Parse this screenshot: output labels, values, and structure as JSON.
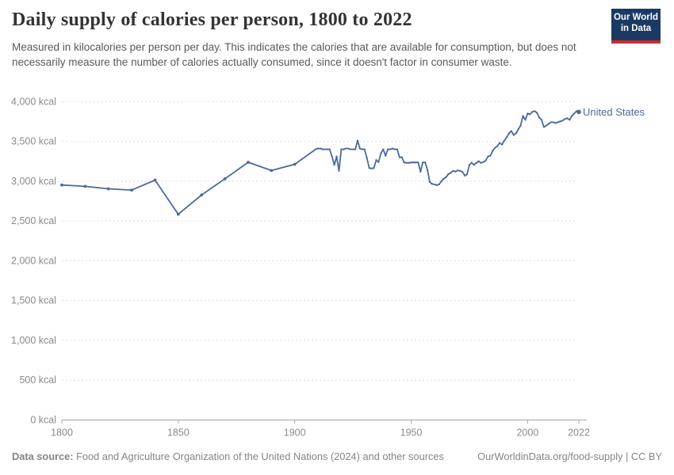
{
  "header": {
    "title": "Daily supply of calories per person, 1800 to 2022",
    "subtitle": "Measured in kilocalories per person per day. This indicates the calories that are available for consumption, but does not necessarily measure the number of calories actually consumed, since it doesn't factor in consumer waste.",
    "logo": {
      "line1": "Our World",
      "line2": "in Data"
    }
  },
  "footer": {
    "source_label": "Data source:",
    "source_text": " Food and Agriculture Organization of the United Nations (2024) and other sources",
    "link_text": "OurWorldinData.org/food-supply | CC BY"
  },
  "colors": {
    "line": "#4c6a9c",
    "series_label": "#4c6a9c",
    "grid": "#dcdcdc",
    "axis": "#a6a6a6",
    "tick_text": "#8a8a8a",
    "logo_bg": "#1b3a63",
    "logo_stripe": "#cb2d2d"
  },
  "chart_data": {
    "type": "line",
    "title": "Daily supply of calories per person, 1800 to 2022",
    "subtitle": "Measured in kilocalories per person per day. This indicates the calories that are available for consumption, but does not necessarily measure the number of calories actually consumed, since it doesn't factor in consumer waste.",
    "xlabel": "",
    "ylabel": "kcal",
    "xlim": [
      1800,
      2022
    ],
    "ylim": [
      0,
      4000
    ],
    "grid": "horizontal-dashed",
    "legend": "end-of-line-label",
    "xticks": [
      1800,
      1850,
      1900,
      1950,
      2000,
      2022
    ],
    "yticks": [
      {
        "value": 0,
        "label": "0 kcal"
      },
      {
        "value": 500,
        "label": "500 kcal"
      },
      {
        "value": 1000,
        "label": "1,000 kcal"
      },
      {
        "value": 1500,
        "label": "1,500 kcal"
      },
      {
        "value": 2000,
        "label": "2,000 kcal"
      },
      {
        "value": 2500,
        "label": "2,500 kcal"
      },
      {
        "value": 3000,
        "label": "3,000 kcal"
      },
      {
        "value": 3500,
        "label": "3,500 kcal"
      },
      {
        "value": 4000,
        "label": "4,000 kcal"
      }
    ],
    "series": [
      {
        "name": "United States",
        "points": [
          [
            1800,
            2952
          ],
          [
            1810,
            2935
          ],
          [
            1820,
            2904
          ],
          [
            1830,
            2888
          ],
          [
            1840,
            3013
          ],
          [
            1850,
            2585
          ],
          [
            1860,
            2826
          ],
          [
            1870,
            3029
          ],
          [
            1880,
            3237
          ],
          [
            1890,
            3134
          ],
          [
            1900,
            3212
          ],
          [
            1909,
            3400
          ],
          [
            1910,
            3410
          ],
          [
            1911,
            3410
          ],
          [
            1912,
            3400
          ],
          [
            1913,
            3400
          ],
          [
            1914,
            3400
          ],
          [
            1915,
            3400
          ],
          [
            1916,
            3310
          ],
          [
            1917,
            3205
          ],
          [
            1918,
            3310
          ],
          [
            1919,
            3130
          ],
          [
            1920,
            3400
          ],
          [
            1921,
            3400
          ],
          [
            1922,
            3410
          ],
          [
            1923,
            3410
          ],
          [
            1924,
            3400
          ],
          [
            1925,
            3400
          ],
          [
            1926,
            3400
          ],
          [
            1927,
            3510
          ],
          [
            1928,
            3410
          ],
          [
            1929,
            3400
          ],
          [
            1930,
            3400
          ],
          [
            1931,
            3290
          ],
          [
            1932,
            3165
          ],
          [
            1933,
            3160
          ],
          [
            1934,
            3165
          ],
          [
            1935,
            3265
          ],
          [
            1936,
            3240
          ],
          [
            1937,
            3350
          ],
          [
            1938,
            3400
          ],
          [
            1939,
            3320
          ],
          [
            1940,
            3400
          ],
          [
            1941,
            3400
          ],
          [
            1942,
            3410
          ],
          [
            1943,
            3400
          ],
          [
            1944,
            3400
          ],
          [
            1945,
            3300
          ],
          [
            1946,
            3300
          ],
          [
            1947,
            3235
          ],
          [
            1948,
            3230
          ],
          [
            1949,
            3230
          ],
          [
            1950,
            3235
          ],
          [
            1951,
            3235
          ],
          [
            1952,
            3235
          ],
          [
            1953,
            3235
          ],
          [
            1954,
            3120
          ],
          [
            1955,
            3235
          ],
          [
            1956,
            3235
          ],
          [
            1957,
            3140
          ],
          [
            1958,
            2990
          ],
          [
            1959,
            2965
          ],
          [
            1960,
            2960
          ],
          [
            1961,
            2950
          ],
          [
            1962,
            2960
          ],
          [
            1963,
            3000
          ],
          [
            1964,
            3030
          ],
          [
            1965,
            3050
          ],
          [
            1966,
            3090
          ],
          [
            1967,
            3105
          ],
          [
            1968,
            3130
          ],
          [
            1969,
            3120
          ],
          [
            1970,
            3135
          ],
          [
            1971,
            3130
          ],
          [
            1972,
            3115
          ],
          [
            1973,
            3070
          ],
          [
            1974,
            3085
          ],
          [
            1975,
            3205
          ],
          [
            1976,
            3230
          ],
          [
            1977,
            3205
          ],
          [
            1978,
            3230
          ],
          [
            1979,
            3250
          ],
          [
            1980,
            3230
          ],
          [
            1981,
            3240
          ],
          [
            1982,
            3260
          ],
          [
            1983,
            3310
          ],
          [
            1984,
            3320
          ],
          [
            1985,
            3380
          ],
          [
            1986,
            3420
          ],
          [
            1987,
            3440
          ],
          [
            1988,
            3480
          ],
          [
            1989,
            3460
          ],
          [
            1990,
            3510
          ],
          [
            1991,
            3550
          ],
          [
            1992,
            3600
          ],
          [
            1993,
            3630
          ],
          [
            1994,
            3580
          ],
          [
            1995,
            3600
          ],
          [
            1996,
            3650
          ],
          [
            1997,
            3700
          ],
          [
            1998,
            3820
          ],
          [
            1999,
            3770
          ],
          [
            2000,
            3850
          ],
          [
            2001,
            3840
          ],
          [
            2002,
            3870
          ],
          [
            2003,
            3880
          ],
          [
            2004,
            3860
          ],
          [
            2005,
            3800
          ],
          [
            2006,
            3770
          ],
          [
            2007,
            3680
          ],
          [
            2008,
            3700
          ],
          [
            2009,
            3720
          ],
          [
            2010,
            3740
          ],
          [
            2011,
            3740
          ],
          [
            2012,
            3730
          ],
          [
            2013,
            3740
          ],
          [
            2014,
            3750
          ],
          [
            2015,
            3760
          ],
          [
            2016,
            3780
          ],
          [
            2017,
            3790
          ],
          [
            2018,
            3770
          ],
          [
            2019,
            3820
          ],
          [
            2020,
            3850
          ],
          [
            2021,
            3880
          ],
          [
            2022,
            3870
          ]
        ]
      }
    ]
  }
}
